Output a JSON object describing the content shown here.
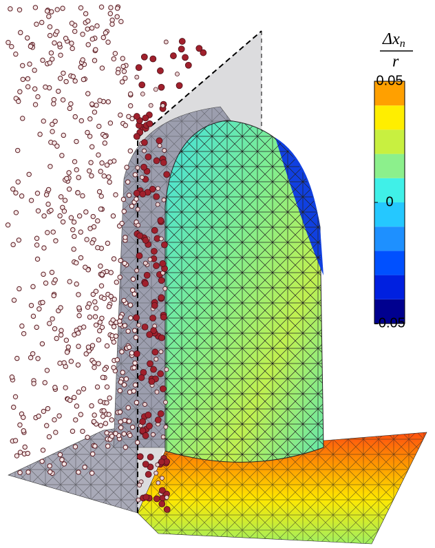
{
  "chart_data": {
    "type": "colorbar",
    "colorbar_label": {
      "numerator": "Δx",
      "subscript": "n",
      "denominator": "r"
    },
    "levels": [
      -0.05,
      -0.04,
      -0.03,
      -0.02,
      -0.01,
      0,
      0.01,
      0.02,
      0.03,
      0.04,
      0.05
    ],
    "colors": [
      "#00008f",
      "#0020e0",
      "#0050ff",
      "#1e90ff",
      "#25c8ff",
      "#40f0e8",
      "#8cf08c",
      "#c8f040",
      "#ffee00",
      "#ffa000",
      "#ff5a10"
    ],
    "ylim": [
      -0.05,
      0.05
    ],
    "yticks": [
      -0.05,
      0,
      0.05
    ]
  }
}
